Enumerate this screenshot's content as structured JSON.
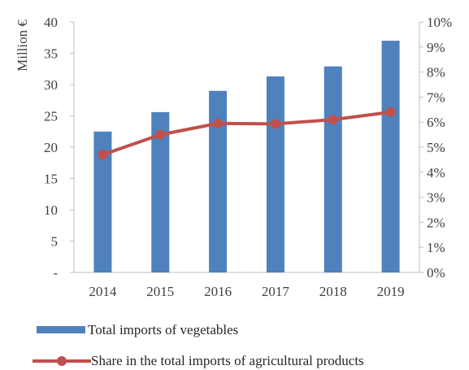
{
  "chart_data": {
    "type": "bar-line",
    "categories": [
      "2014",
      "2015",
      "2016",
      "2017",
      "2018",
      "2019"
    ],
    "series": [
      {
        "name": "Total imports of vegetables",
        "type": "bar",
        "axis": "left",
        "color": "#4F81BD",
        "values": [
          22.5,
          25.6,
          29.0,
          31.3,
          32.9,
          37.0
        ]
      },
      {
        "name": "Share in the total imports of agricultural products",
        "type": "line",
        "axis": "right",
        "color": "#C0504D",
        "values": [
          4.7,
          5.5,
          5.95,
          5.93,
          6.1,
          6.4
        ]
      }
    ],
    "ylabel": "Million €",
    "ylim": [
      0,
      40
    ],
    "y_ticks": [
      "-",
      "5",
      "10",
      "15",
      "20",
      "25",
      "30",
      "35",
      "40"
    ],
    "y2lim": [
      0,
      10
    ],
    "y2_ticks": [
      "0%",
      "1%",
      "2%",
      "3%",
      "4%",
      "5%",
      "6%",
      "7%",
      "8%",
      "9%",
      "10%"
    ],
    "grid": false,
    "legend_position": "bottom"
  }
}
